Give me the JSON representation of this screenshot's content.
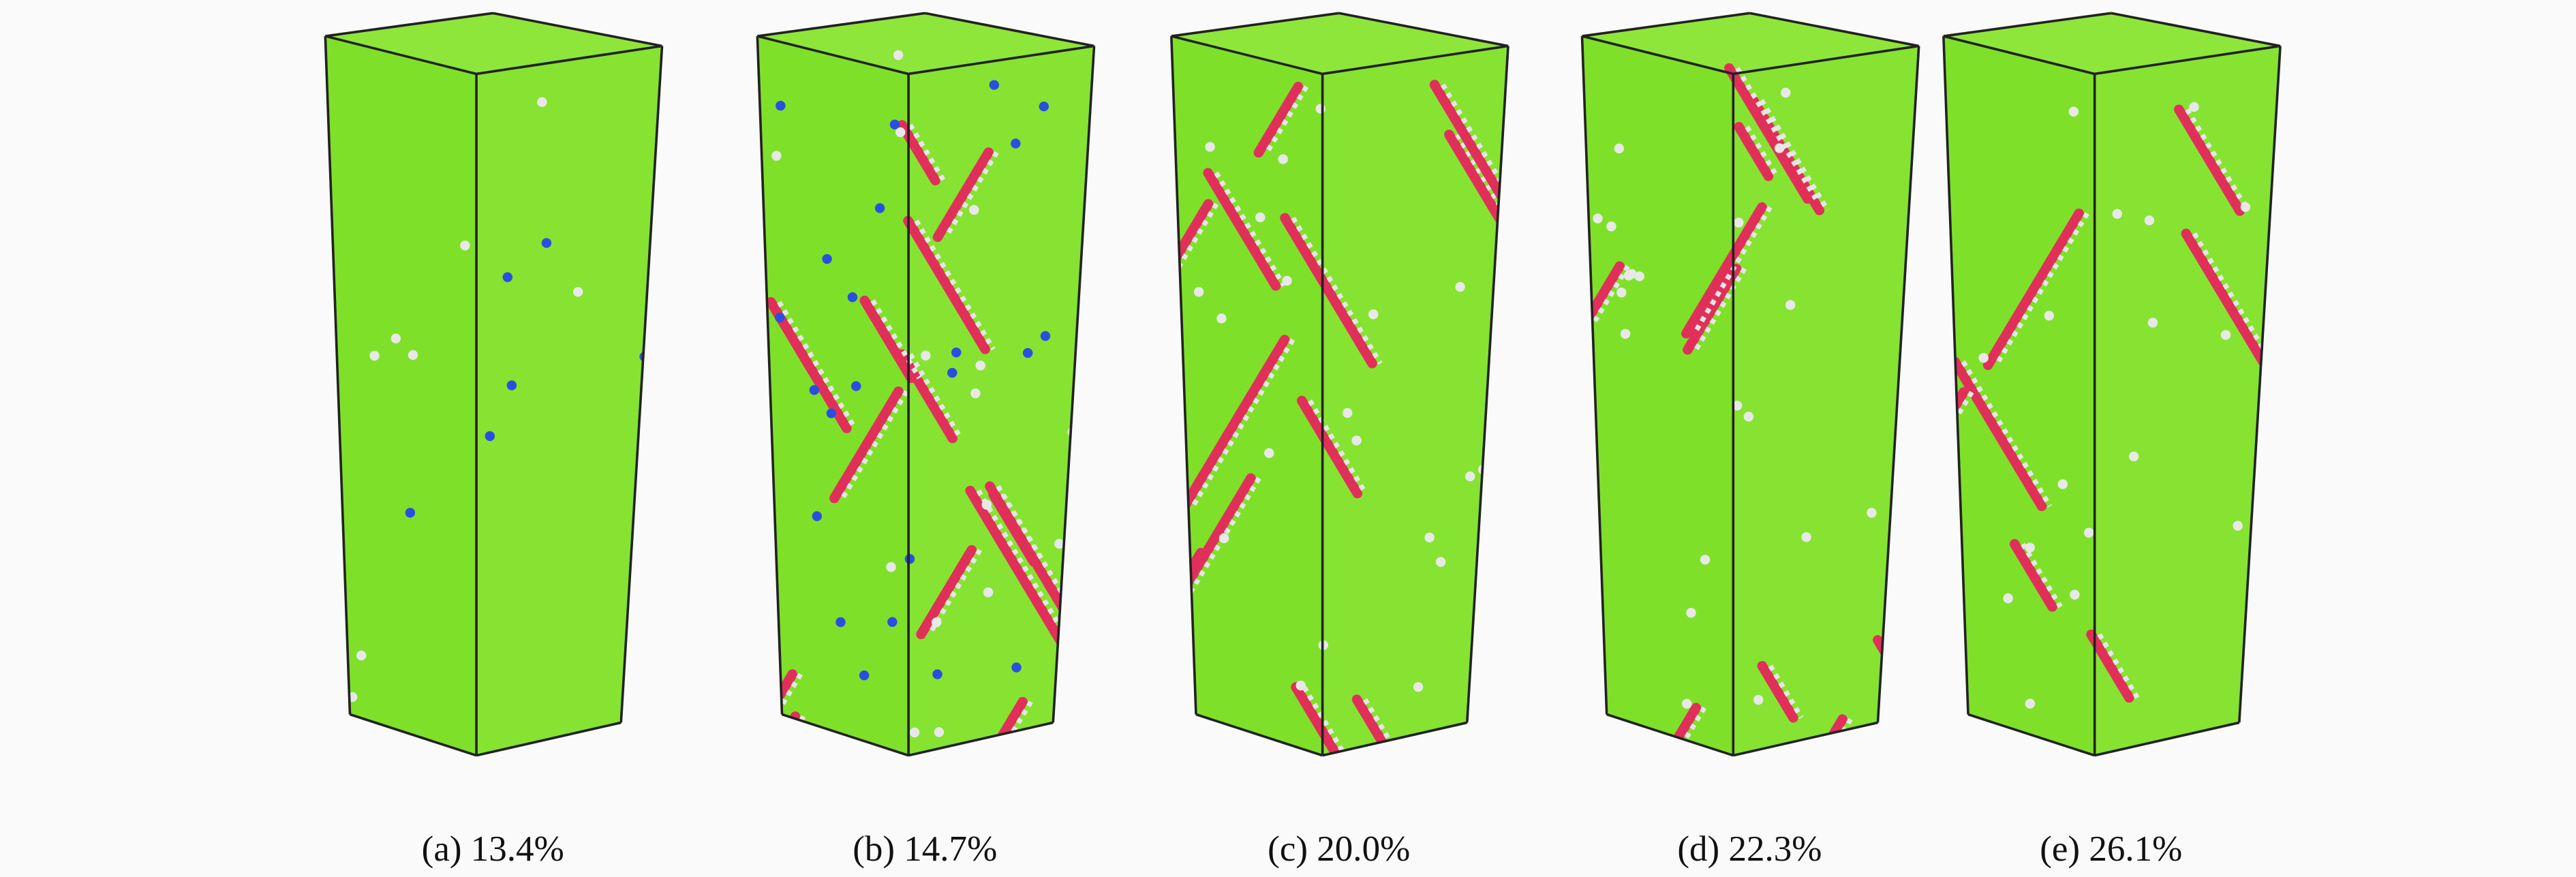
{
  "panels": [
    {
      "caption": "(a) 13.4%"
    },
    {
      "caption": "(b) 14.7%"
    },
    {
      "caption": "(c) 20.0%"
    },
    {
      "caption": "(d) 22.3%"
    },
    {
      "caption": "(e) 26.1%"
    }
  ]
}
